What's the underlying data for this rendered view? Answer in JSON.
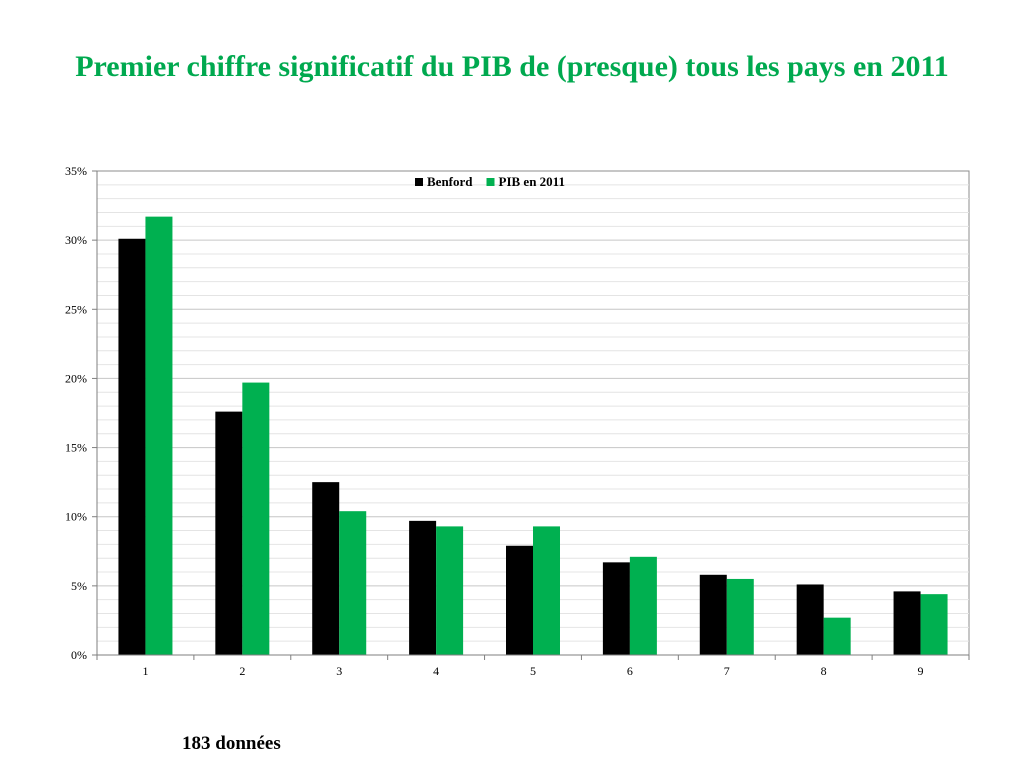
{
  "slide": {
    "title": "Premier chiffre significatif du PIB de (presque) tous les pays en 2011",
    "footnote": "183 données"
  },
  "colors": {
    "title": "#00a94f",
    "benford": "#000000",
    "pib": "#00b050"
  },
  "chart_data": {
    "type": "bar",
    "categories": [
      "1",
      "2",
      "3",
      "4",
      "5",
      "6",
      "7",
      "8",
      "9"
    ],
    "series": [
      {
        "name": "Benford",
        "color": "#000000",
        "values": [
          30.1,
          17.6,
          12.5,
          9.7,
          7.9,
          6.7,
          5.8,
          5.1,
          4.6
        ]
      },
      {
        "name": "PIB en 2011",
        "color": "#00b050",
        "values": [
          31.7,
          19.7,
          10.4,
          9.3,
          9.3,
          7.1,
          5.5,
          2.7,
          4.4
        ]
      }
    ],
    "ylim": [
      0,
      35
    ],
    "yticks": [
      0,
      5,
      10,
      15,
      20,
      25,
      30,
      35
    ],
    "ytick_labels": [
      "0%",
      "5%",
      "10%",
      "15%",
      "20%",
      "25%",
      "30%",
      "35%"
    ],
    "minor_gridline_step": 1,
    "grid": true,
    "legend_position": "top-center"
  }
}
